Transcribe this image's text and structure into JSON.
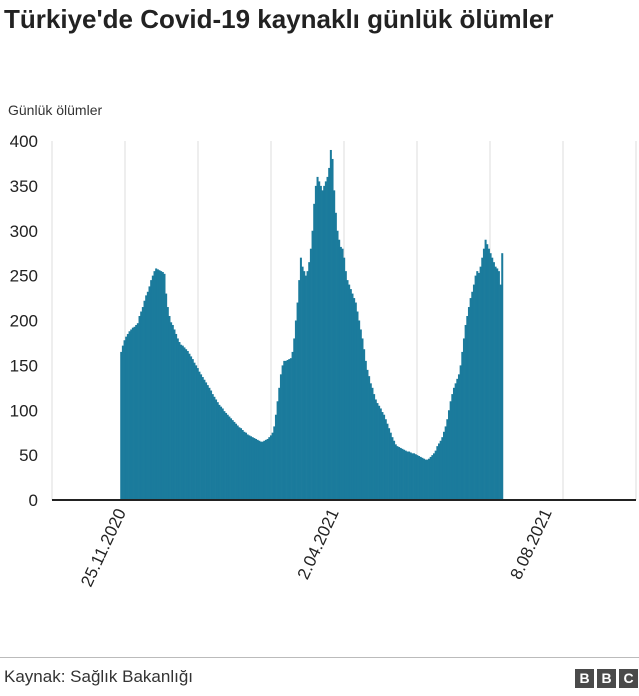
{
  "chart_data": {
    "type": "bar",
    "title": "Türkiye'de Covid-19 kaynaklı günlük ölümler",
    "ylabel": "Günlük ölümler",
    "ylim": [
      0,
      400
    ],
    "yticks": [
      0,
      50,
      100,
      150,
      200,
      250,
      300,
      350,
      400
    ],
    "xlim": [
      "2020-10-15",
      "2021-10-01"
    ],
    "xtick_labels": [
      {
        "date": "2020-11-25",
        "label": "25.11.2020"
      },
      {
        "date": "2021-04-02",
        "label": "2.04.2021"
      },
      {
        "date": "2021-08-08",
        "label": "8.08.2021"
      }
    ],
    "series_color": "#1b7b9c",
    "grid": "vertical",
    "start_date": "2020-11-25",
    "values": [
      165,
      172,
      178,
      182,
      185,
      188,
      190,
      192,
      193,
      195,
      197,
      205,
      210,
      215,
      222,
      228,
      232,
      238,
      245,
      250,
      255,
      258,
      257,
      256,
      255,
      254,
      252,
      230,
      215,
      205,
      198,
      195,
      190,
      185,
      180,
      176,
      173,
      172,
      170,
      168,
      166,
      163,
      160,
      157,
      153,
      150,
      147,
      143,
      140,
      137,
      134,
      131,
      128,
      125,
      122,
      118,
      115,
      112,
      109,
      106,
      104,
      102,
      99,
      97,
      95,
      93,
      91,
      89,
      87,
      85,
      83,
      81,
      80,
      78,
      76,
      75,
      73,
      72,
      71,
      70,
      69,
      68,
      67,
      66,
      65,
      65,
      66,
      67,
      68,
      70,
      72,
      75,
      82,
      95,
      110,
      125,
      140,
      150,
      155,
      155,
      156,
      157,
      158,
      165,
      180,
      200,
      220,
      245,
      270,
      260,
      255,
      250,
      255,
      265,
      280,
      300,
      330,
      350,
      360,
      355,
      350,
      345,
      350,
      355,
      360,
      370,
      390,
      380,
      345,
      320,
      300,
      290,
      282,
      280,
      270,
      255,
      245,
      240,
      235,
      230,
      225,
      220,
      210,
      200,
      190,
      180,
      168,
      155,
      145,
      138,
      130,
      125,
      118,
      112,
      108,
      105,
      102,
      98,
      95,
      90,
      85,
      80,
      75,
      70,
      66,
      62,
      60,
      59,
      58,
      57,
      56,
      55,
      54,
      54,
      53,
      52,
      52,
      51,
      50,
      49,
      48,
      47,
      46,
      45,
      45,
      46,
      48,
      50,
      52,
      55,
      60,
      63,
      66,
      70,
      76,
      82,
      90,
      100,
      110,
      118,
      125,
      130,
      135,
      140,
      150,
      165,
      180,
      195,
      205,
      215,
      225,
      232,
      240,
      250,
      255,
      253,
      260,
      270,
      280,
      290,
      285,
      280,
      275,
      270,
      265,
      260,
      258,
      255,
      240,
      275
    ]
  },
  "source": "Kaynak: Sağlık Bakanlığı",
  "logo": [
    "B",
    "B",
    "C"
  ]
}
